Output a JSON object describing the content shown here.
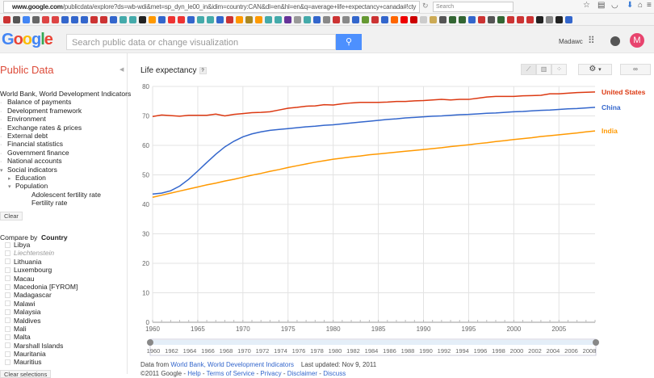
{
  "browser": {
    "url_host": "www.google.com",
    "url_rest": "/publicdata/explore?ds=wb-wdi&met=sp_dyn_le00_in&idim=country:CAN&dl=en&hl=en&q=average+life+expectancy+canada#!cty",
    "search_placeholder": "Search"
  },
  "header": {
    "logo": "Google",
    "search_placeholder": "Search public data or change visualization",
    "user": "Madawc",
    "avatar_letter": "M"
  },
  "sidebar": {
    "title": "Public Data",
    "dataset": "World Bank, World Development Indicators",
    "topics": [
      {
        "label": "Balance of payments",
        "marker": "·",
        "level": 1
      },
      {
        "label": "Development framework",
        "marker": "·",
        "level": 1
      },
      {
        "label": "Environment",
        "marker": "·",
        "level": 1
      },
      {
        "label": "Exchange rates & prices",
        "marker": "·",
        "level": 1
      },
      {
        "label": "External debt",
        "marker": "·",
        "level": 1
      },
      {
        "label": "Financial statistics",
        "marker": "·",
        "level": 1
      },
      {
        "label": "Government finance",
        "marker": "·",
        "level": 1
      },
      {
        "label": "National accounts",
        "marker": "·",
        "level": 1
      },
      {
        "label": "Social indicators",
        "marker": "▾",
        "level": 1
      },
      {
        "label": "Education",
        "marker": "▸",
        "level": 2
      },
      {
        "label": "Population",
        "marker": "▾",
        "level": 2
      },
      {
        "label": "Adolescent fertility rate",
        "marker": "",
        "level": 3
      },
      {
        "label": "Fertility rate",
        "marker": "",
        "level": 3
      }
    ],
    "clear": "Clear",
    "compare_label": "Compare by",
    "compare_value": "Country",
    "countries": [
      "Libya",
      "Liechtenstein",
      "Lithuania",
      "Luxembourg",
      "Macau",
      "Macedonia [FYROM]",
      "Madagascar",
      "Malawi",
      "Malaysia",
      "Maldives",
      "Mali",
      "Malta",
      "Marshall Islands",
      "Mauritania",
      "Mauritius"
    ],
    "clear_selections": "Clear selections"
  },
  "chart_header": {
    "title": "Life expectancy",
    "help": "?",
    "link": "∞"
  },
  "chart_data": {
    "type": "line",
    "title": "Life expectancy",
    "ylim": [
      0,
      80
    ],
    "yticks": [
      0,
      10,
      20,
      30,
      40,
      50,
      60,
      70,
      80
    ],
    "xticks": [
      1960,
      1965,
      1970,
      1975,
      1980,
      1985,
      1990,
      1995,
      2000,
      2005
    ],
    "grid": true,
    "legend": "right (end-of-line labels)",
    "x": [
      1960,
      1961,
      1962,
      1963,
      1964,
      1965,
      1966,
      1967,
      1968,
      1969,
      1970,
      1971,
      1972,
      1973,
      1974,
      1975,
      1976,
      1977,
      1978,
      1979,
      1980,
      1981,
      1982,
      1983,
      1984,
      1985,
      1986,
      1987,
      1988,
      1989,
      1990,
      1991,
      1992,
      1993,
      1994,
      1995,
      1996,
      1997,
      1998,
      1999,
      2000,
      2001,
      2002,
      2003,
      2004,
      2005,
      2006,
      2007,
      2008,
      2009
    ],
    "series": [
      {
        "name": "United States",
        "color": "#dc3912",
        "values": [
          69.8,
          70.3,
          70.1,
          69.9,
          70.2,
          70.2,
          70.2,
          70.6,
          70.0,
          70.5,
          70.8,
          71.1,
          71.2,
          71.4,
          72.0,
          72.6,
          72.9,
          73.3,
          73.4,
          73.8,
          73.7,
          74.1,
          74.4,
          74.6,
          74.6,
          74.6,
          74.7,
          74.9,
          74.9,
          75.1,
          75.2,
          75.4,
          75.6,
          75.4,
          75.6,
          75.6,
          76.0,
          76.4,
          76.6,
          76.6,
          76.6,
          76.8,
          76.9,
          77.0,
          77.5,
          77.5,
          77.7,
          77.9,
          78.0,
          78.1
        ]
      },
      {
        "name": "China",
        "color": "#3366cc",
        "values": [
          43.5,
          43.8,
          44.6,
          46.2,
          48.5,
          51.3,
          54.2,
          57.0,
          59.5,
          61.4,
          62.9,
          63.9,
          64.6,
          65.1,
          65.4,
          65.7,
          66.0,
          66.3,
          66.5,
          66.8,
          67.0,
          67.3,
          67.6,
          67.9,
          68.2,
          68.5,
          68.8,
          69.0,
          69.3,
          69.5,
          69.7,
          69.9,
          70.0,
          70.2,
          70.4,
          70.5,
          70.7,
          70.9,
          71.0,
          71.2,
          71.4,
          71.5,
          71.7,
          71.9,
          72.0,
          72.2,
          72.4,
          72.5,
          72.7,
          72.9
        ]
      },
      {
        "name": "India",
        "color": "#ff9900",
        "values": [
          42.4,
          43.1,
          43.8,
          44.5,
          45.2,
          45.9,
          46.6,
          47.2,
          47.9,
          48.5,
          49.2,
          49.9,
          50.5,
          51.2,
          51.8,
          52.5,
          53.1,
          53.7,
          54.3,
          54.8,
          55.3,
          55.7,
          56.1,
          56.4,
          56.8,
          57.1,
          57.4,
          57.7,
          58.0,
          58.3,
          58.6,
          58.9,
          59.2,
          59.6,
          59.9,
          60.2,
          60.6,
          60.9,
          61.3,
          61.6,
          62.0,
          62.3,
          62.6,
          63.0,
          63.3,
          63.6,
          63.9,
          64.2,
          64.6,
          64.9
        ]
      }
    ],
    "timeline_labels": [
      "1960",
      "1962",
      "1964",
      "1966",
      "1968",
      "1970",
      "1972",
      "1974",
      "1976",
      "1978",
      "1980",
      "1982",
      "1984",
      "1986",
      "1988",
      "1990",
      "1992",
      "1994",
      "1996",
      "1998",
      "2000",
      "2002",
      "2004",
      "2006",
      "2008"
    ]
  },
  "footer": {
    "data_from": "Data from",
    "source": "World Bank, World Development Indicators",
    "updated": "Last updated: Nov 9, 2011",
    "copyright": "©2011 Google -",
    "links": [
      "Help",
      "Terms of Service",
      "Privacy",
      "Disclaimer",
      "Discuss"
    ]
  }
}
